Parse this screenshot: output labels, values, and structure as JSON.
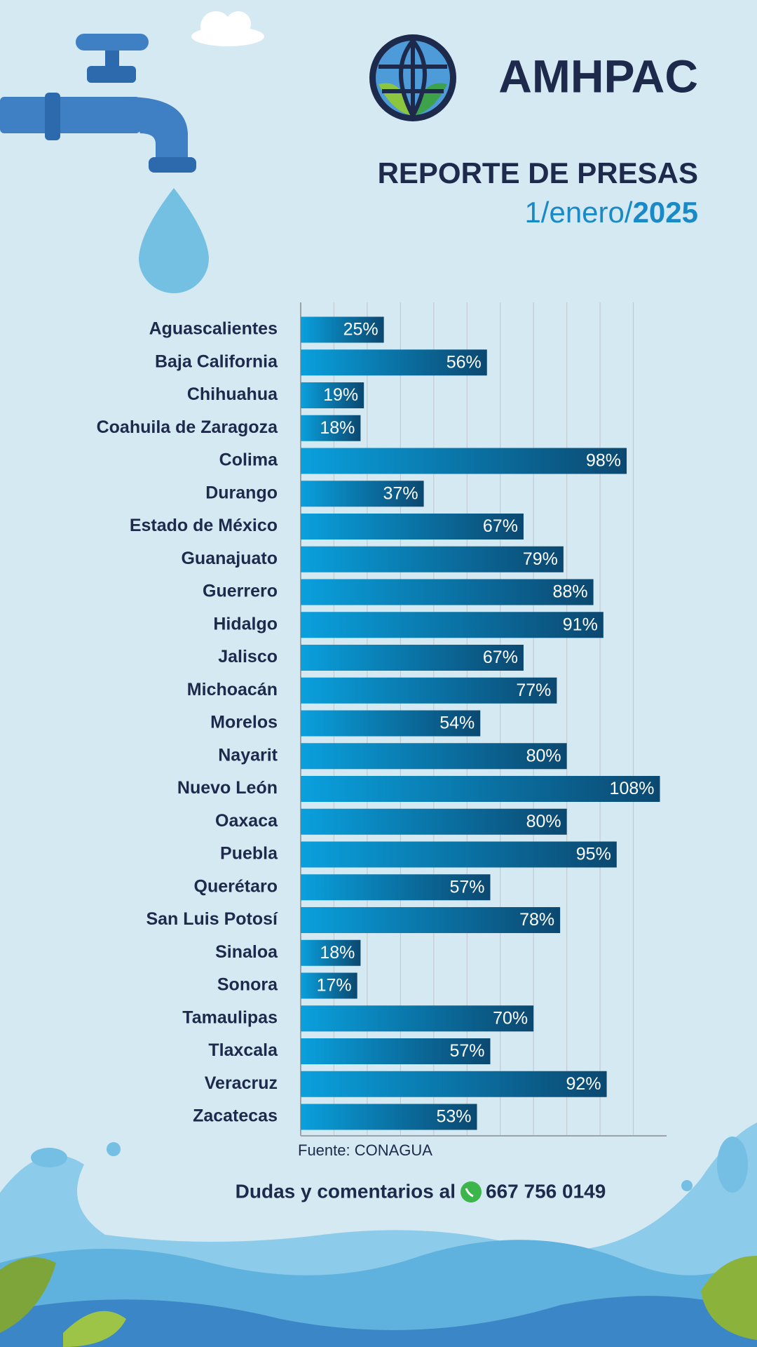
{
  "chart_data": {
    "type": "bar",
    "orientation": "horizontal",
    "logo_text": "AMHPAC",
    "title": "REPORTE DE PRESAS",
    "subtitle_parts": [
      "1/enero/",
      "2025"
    ],
    "categories": [
      "Aguascalientes",
      "Baja California",
      "Chihuahua",
      "Coahuila de Zaragoza",
      "Colima",
      "Durango",
      "Estado de México",
      "Guanajuato",
      "Guerrero",
      "Hidalgo",
      "Jalisco",
      "Michoacán",
      "Morelos",
      "Nayarit",
      "Nuevo León",
      "Oaxaca",
      "Puebla",
      "Querétaro",
      "San Luis Potosí",
      "Sinaloa",
      "Sonora",
      "Tamaulipas",
      "Tlaxcala",
      "Veracruz",
      "Zacatecas"
    ],
    "values": [
      25,
      56,
      19,
      18,
      98,
      37,
      67,
      79,
      88,
      91,
      67,
      77,
      54,
      80,
      108,
      80,
      95,
      57,
      78,
      18,
      17,
      70,
      57,
      92,
      53
    ],
    "value_labels": [
      "25%",
      "56%",
      "19%",
      "18%",
      "98%",
      "37%",
      "67%",
      "79%",
      "88%",
      "91%",
      "67%",
      "77%",
      "54%",
      "80%",
      "108%",
      "80%",
      "95%",
      "57%",
      "78%",
      "18%",
      "17%",
      "70%",
      "57%",
      "92%",
      "53%"
    ],
    "color_gradient": [
      "#0aa0dd",
      "#0b4870"
    ],
    "xlim": [
      0,
      110
    ],
    "xticks": [
      0,
      10,
      20,
      30,
      40,
      50,
      60,
      70,
      80,
      90,
      100
    ],
    "grid": true,
    "source": "Fuente: CONAGUA",
    "contact": "Dudas y comentarios al",
    "phone": "667 756 0149"
  }
}
